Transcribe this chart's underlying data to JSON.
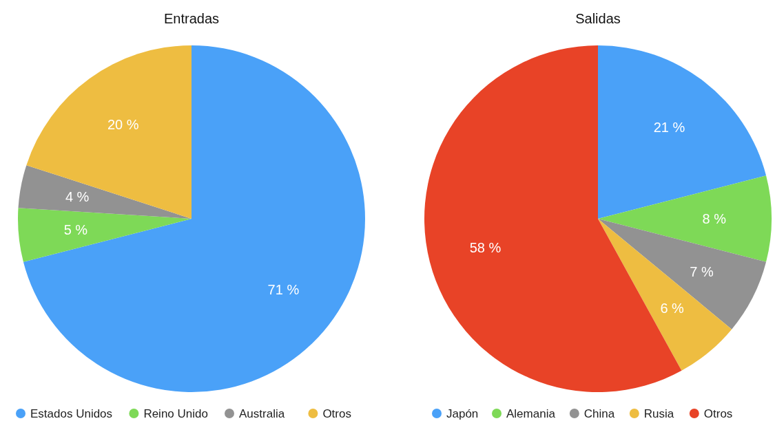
{
  "chart_data": [
    {
      "type": "pie",
      "title": "Entradas",
      "categories": [
        "Estados Unidos",
        "Reino Unido",
        "Australia",
        "Otros"
      ],
      "values": [
        71,
        5,
        4,
        20
      ],
      "value_labels": [
        "71 %",
        "5 %",
        "4 %",
        "20 %"
      ],
      "colors": [
        "#4aa1f8",
        "#7ed957",
        "#929292",
        "#eebd41"
      ],
      "legend": "bottom"
    },
    {
      "type": "pie",
      "title": "Salidas",
      "categories": [
        "Japón",
        "Alemania",
        "China",
        "Rusia",
        "Otros"
      ],
      "values": [
        21,
        8,
        7,
        6,
        58
      ],
      "value_labels": [
        "21 %",
        "8 %",
        "7 %",
        "6 %",
        "58 %"
      ],
      "colors": [
        "#4aa1f8",
        "#7ed957",
        "#929292",
        "#eebd41",
        "#e84327"
      ],
      "legend": "bottom"
    }
  ]
}
